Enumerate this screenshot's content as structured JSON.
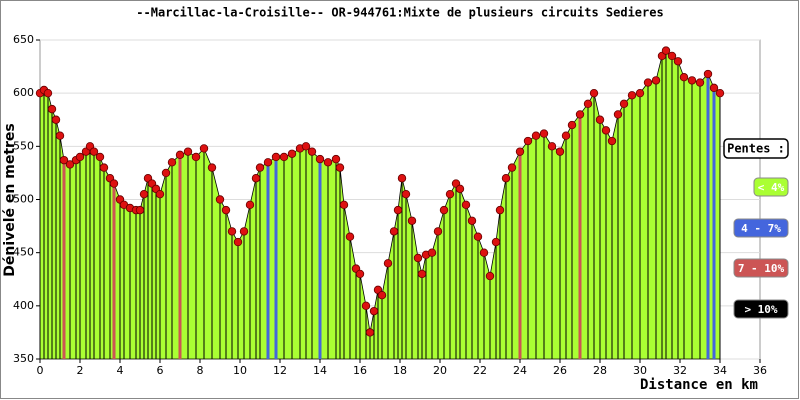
{
  "chart_data": {
    "type": "area",
    "title": "--Marcillac-la-Croisille-- OR-944761:Mixte de plusieurs circuits Sedieres",
    "x_label": "Distance en km",
    "y_label": "Dénivelé en metres",
    "xlim": [
      0,
      36
    ],
    "ylim": [
      350,
      650
    ],
    "xticks": [
      0,
      2,
      4,
      6,
      8,
      10,
      12,
      14,
      16,
      18,
      20,
      22,
      24,
      26,
      28,
      30,
      32,
      34,
      36
    ],
    "yticks": [
      350,
      400,
      450,
      500,
      550,
      600,
      650
    ],
    "grid": true,
    "color": "#aaff33",
    "marker_color": "#dd1111",
    "x": [
      0,
      0.2,
      0.4,
      0.6,
      0.8,
      1.0,
      1.2,
      1.5,
      1.8,
      2.0,
      2.3,
      2.5,
      2.7,
      3.0,
      3.2,
      3.5,
      3.7,
      4.0,
      4.2,
      4.5,
      4.8,
      5.0,
      5.2,
      5.4,
      5.6,
      5.8,
      6.0,
      6.3,
      6.6,
      7.0,
      7.4,
      7.8,
      8.2,
      8.6,
      9.0,
      9.3,
      9.6,
      9.9,
      10.2,
      10.5,
      10.8,
      11.0,
      11.4,
      11.8,
      12.2,
      12.6,
      13.0,
      13.3,
      13.6,
      14.0,
      14.4,
      14.8,
      15.0,
      15.2,
      15.5,
      15.8,
      16.0,
      16.3,
      16.5,
      16.7,
      16.9,
      17.1,
      17.4,
      17.7,
      17.9,
      18.1,
      18.3,
      18.6,
      18.9,
      19.1,
      19.3,
      19.6,
      19.9,
      20.2,
      20.5,
      20.8,
      21.0,
      21.3,
      21.6,
      21.9,
      22.2,
      22.5,
      22.8,
      23.0,
      23.3,
      23.6,
      24.0,
      24.4,
      24.8,
      25.2,
      25.6,
      26.0,
      26.3,
      26.6,
      27.0,
      27.4,
      27.7,
      28.0,
      28.3,
      28.6,
      28.9,
      29.2,
      29.6,
      30.0,
      30.4,
      30.8,
      31.1,
      31.3,
      31.6,
      31.9,
      32.2,
      32.6,
      33.0,
      33.4,
      33.7,
      34.0
    ],
    "values": [
      600,
      603,
      600,
      585,
      575,
      560,
      537,
      533,
      537,
      540,
      545,
      550,
      545,
      540,
      530,
      520,
      515,
      500,
      495,
      492,
      490,
      490,
      505,
      520,
      515,
      510,
      505,
      525,
      535,
      542,
      545,
      540,
      548,
      530,
      500,
      490,
      470,
      460,
      470,
      495,
      520,
      530,
      535,
      540,
      540,
      543,
      548,
      550,
      545,
      538,
      535,
      538,
      530,
      495,
      465,
      435,
      430,
      400,
      375,
      395,
      415,
      410,
      440,
      470,
      490,
      520,
      505,
      480,
      445,
      430,
      448,
      450,
      470,
      490,
      505,
      515,
      510,
      495,
      480,
      465,
      450,
      428,
      460,
      490,
      520,
      530,
      545,
      555,
      560,
      562,
      550,
      545,
      560,
      570,
      580,
      590,
      600,
      575,
      565,
      555,
      580,
      590,
      598,
      600,
      610,
      612,
      635,
      640,
      635,
      630,
      615,
      612,
      610,
      618,
      605,
      600
    ],
    "line_colors": [
      "#000",
      "#000",
      "#000",
      "#000",
      "#000",
      "#000",
      "#c55",
      "#000",
      "#000",
      "#000",
      "#000",
      "#000",
      "#000",
      "#000",
      "#000",
      "#000",
      "#c55",
      "#000",
      "#000",
      "#000",
      "#000",
      "#000",
      "#000",
      "#000",
      "#000",
      "#000",
      "#000",
      "#000",
      "#000",
      "#c55",
      "#000",
      "#000",
      "#000",
      "#000",
      "#000",
      "#000",
      "#000",
      "#000",
      "#000",
      "#000",
      "#000",
      "#000",
      "#46d",
      "#46d",
      "#000",
      "#000",
      "#000",
      "#000",
      "#000",
      "#46d",
      "#000",
      "#000",
      "#000",
      "#000",
      "#000",
      "#000",
      "#000",
      "#000",
      "#000",
      "#000",
      "#000",
      "#000",
      "#000",
      "#000",
      "#000",
      "#000",
      "#000",
      "#000",
      "#000",
      "#000",
      "#000",
      "#000",
      "#000",
      "#000",
      "#000",
      "#000",
      "#000",
      "#000",
      "#000",
      "#000",
      "#000",
      "#000",
      "#000",
      "#000",
      "#000",
      "#000",
      "#c55",
      "#000",
      "#000",
      "#000",
      "#000",
      "#000",
      "#000",
      "#000",
      "#c55",
      "#000",
      "#000",
      "#000",
      "#000",
      "#000",
      "#000",
      "#000",
      "#000",
      "#000",
      "#000",
      "#000",
      "#000",
      "#000",
      "#000",
      "#000",
      "#000",
      "#000",
      "#000",
      "#46d",
      "#46d",
      "#000"
    ],
    "legend": {
      "title": "Pentes :",
      "items": [
        {
          "name": "< 4%",
          "color": "#aaff33"
        },
        {
          "name": "4 - 7%",
          "color": "#4466dd"
        },
        {
          "name": "7 - 10%",
          "color": "#cc5555"
        },
        {
          "name": "> 10%",
          "color": "#000000"
        }
      ]
    }
  }
}
